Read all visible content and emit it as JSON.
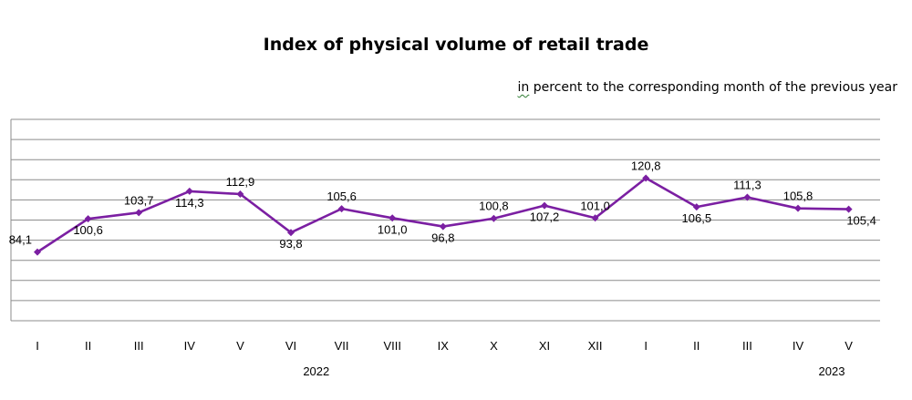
{
  "chart_data": {
    "type": "line",
    "title": "Index of physical volume of retail trade",
    "subtitle_first": "in",
    "subtitle_rest": " percent to the corresponding month of the previous year",
    "categories": [
      "I",
      "II",
      "III",
      "IV",
      "V",
      "VI",
      "VII",
      "VIII",
      "IX",
      "X",
      "XI",
      "XII",
      "I",
      "II",
      "III",
      "IV",
      "V"
    ],
    "year_labels": [
      {
        "label": "2022",
        "from_index": 0,
        "to_index": 11
      },
      {
        "label": "2023",
        "from_index": 12,
        "to_index": 16
      }
    ],
    "values": [
      84.1,
      100.6,
      103.7,
      114.3,
      112.9,
      93.8,
      105.6,
      101.0,
      96.8,
      100.8,
      107.2,
      101.0,
      120.8,
      106.5,
      111.3,
      105.8,
      105.4
    ],
    "data_labels": [
      "84,1",
      "100,6",
      "103,7",
      "114,3",
      "112,9",
      "93,8",
      "105,6",
      "101,0",
      "96,8",
      "100,8",
      "107,2",
      "101,0",
      "120,8",
      "106,5",
      "111,3",
      "105,8",
      "105,4"
    ],
    "label_positions": [
      "left",
      "below",
      "above",
      "below",
      "above",
      "below",
      "above",
      "below",
      "below",
      "above",
      "below",
      "above",
      "above",
      "below",
      "above",
      "above",
      "below"
    ],
    "ylim": [
      50,
      150
    ],
    "grid": true,
    "line_color": "#7b1fa2",
    "grid_color": "#8c8c8c"
  }
}
